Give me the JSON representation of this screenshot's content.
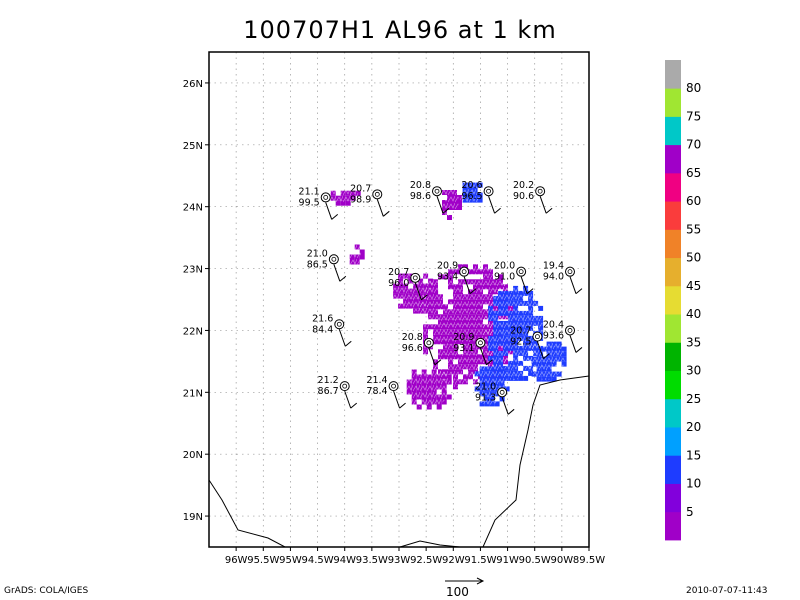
{
  "title": "100707H1 AL96 at 1 km",
  "footer_left": "GrADS: COLA/IGES",
  "footer_right": "2010-07-07-11:43",
  "scale_label": "100",
  "chart_data": {
    "type": "heatmap",
    "title": "100707H1 AL96 at 1 km",
    "xlim": [
      -96.5,
      -89.5
    ],
    "ylim": [
      18.5,
      26.5
    ],
    "x_ticks": [
      "96W",
      "95.5W",
      "95W",
      "94.5W",
      "94W",
      "93.5W",
      "93W",
      "92.5W",
      "92W",
      "91.5W",
      "91W",
      "90.5W",
      "90W",
      "89.5W"
    ],
    "y_ticks": [
      "19N",
      "20N",
      "21N",
      "22N",
      "23N",
      "24N",
      "25N",
      "26N"
    ],
    "grid": true,
    "colorbar": {
      "labels": [
        "5",
        "10",
        "15",
        "20",
        "25",
        "30",
        "35",
        "40",
        "45",
        "50",
        "55",
        "60",
        "65",
        "70",
        "75",
        "80"
      ],
      "colors": [
        "#a000c8",
        "#8200dc",
        "#1e3cff",
        "#00a0ff",
        "#00c8c8",
        "#00dc00",
        "#00b400",
        "#a0e632",
        "#e6dc32",
        "#e6af2d",
        "#f08228",
        "#fa3c3c",
        "#f00082",
        "#a000c8",
        "#00c8c8",
        "#a0e632",
        "#aaaaaa"
      ]
    },
    "stations": [
      {
        "lon": -94.35,
        "lat": 24.15,
        "t": "21.1",
        "p": "99.5"
      },
      {
        "lon": -93.4,
        "lat": 24.2,
        "t": "20.7",
        "p": "98.9"
      },
      {
        "lon": -92.3,
        "lat": 24.25,
        "t": "20.8",
        "p": "98.6"
      },
      {
        "lon": -91.35,
        "lat": 24.25,
        "t": "20.6",
        "p": "96.5"
      },
      {
        "lon": -90.4,
        "lat": 24.25,
        "t": "20.2",
        "p": "90.6"
      },
      {
        "lon": -94.2,
        "lat": 23.15,
        "t": "21.0",
        "p": "86.5"
      },
      {
        "lon": -92.7,
        "lat": 22.85,
        "t": "20.7",
        "p": "96.0"
      },
      {
        "lon": -91.8,
        "lat": 22.95,
        "t": "20.9",
        "p": "93.4"
      },
      {
        "lon": -90.75,
        "lat": 22.95,
        "t": "20.0",
        "p": "91.0"
      },
      {
        "lon": -89.85,
        "lat": 22.95,
        "t": "19.4",
        "p": "94.0"
      },
      {
        "lon": -94.1,
        "lat": 22.1,
        "t": "21.6",
        "p": "84.4"
      },
      {
        "lon": -92.45,
        "lat": 21.8,
        "t": "20.8",
        "p": "96.6"
      },
      {
        "lon": -91.5,
        "lat": 21.8,
        "t": "20.9",
        "p": "93.1"
      },
      {
        "lon": -90.45,
        "lat": 21.9,
        "t": "20.7",
        "p": "92.5"
      },
      {
        "lon": -89.85,
        "lat": 22.0,
        "t": "20.4",
        "p": "93.6"
      },
      {
        "lon": -94.0,
        "lat": 21.1,
        "t": "21.2",
        "p": "86.7"
      },
      {
        "lon": -93.1,
        "lat": 21.1,
        "t": "21.4",
        "p": "78.4"
      },
      {
        "lon": -91.1,
        "lat": 21.0,
        "t": "21.0",
        "p": "91.3"
      }
    ],
    "echo_regions": [
      {
        "lon": -94.05,
        "lat": 24.2,
        "rlon": 0.3,
        "rlat": 0.14,
        "color": "#a000c8"
      },
      {
        "lon": -92.1,
        "lat": 24.1,
        "rlon": 0.2,
        "rlat": 0.25,
        "color": "#a000c8"
      },
      {
        "lon": -91.7,
        "lat": 24.25,
        "rlon": 0.22,
        "rlat": 0.22,
        "color": "#1e3cff"
      },
      {
        "lon": -93.85,
        "lat": 23.25,
        "rlon": 0.15,
        "rlat": 0.22,
        "color": "#a000c8"
      },
      {
        "lon": -92.75,
        "lat": 22.65,
        "rlon": 0.45,
        "rlat": 0.35,
        "color": "#a000c8"
      },
      {
        "lon": -91.75,
        "lat": 22.1,
        "rlon": 0.9,
        "rlat": 1.05,
        "color": "#a000c8"
      },
      {
        "lon": -90.9,
        "lat": 22.0,
        "rlon": 0.55,
        "rlat": 0.8,
        "color": "#1e3cff"
      },
      {
        "lon": -90.3,
        "lat": 21.55,
        "rlon": 0.35,
        "rlat": 0.35,
        "color": "#1e3cff"
      },
      {
        "lon": -92.5,
        "lat": 21.1,
        "rlon": 0.45,
        "rlat": 0.35,
        "color": "#a000c8"
      },
      {
        "lon": -91.35,
        "lat": 21.15,
        "rlon": 0.35,
        "rlat": 0.35,
        "color": "#1e3cff"
      }
    ]
  }
}
